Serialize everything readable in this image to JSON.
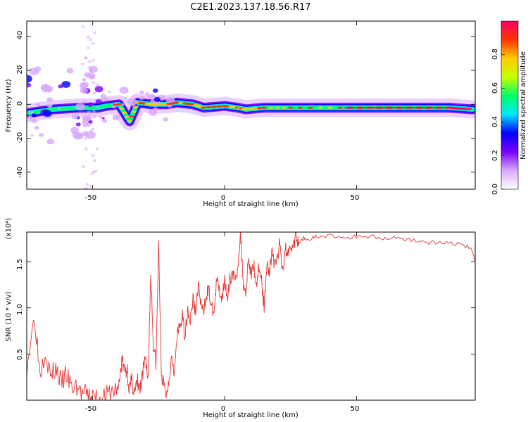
{
  "title": "C2E1.2023.137.18.56.R17",
  "chart_data": [
    {
      "type": "heatmap",
      "xlabel": "Height of straight line (km)",
      "ylabel": "Frequency (Hz)",
      "xlim": [
        -75,
        95
      ],
      "ylim": [
        -50,
        49
      ],
      "x_ticks": [
        "-50",
        "0",
        "50"
      ],
      "y_ticks": [
        "-40",
        "-20",
        "0",
        "20",
        "40"
      ],
      "colorbar": {
        "label": "Normalized spectral amplitude",
        "range": [
          0,
          1
        ],
        "ticks": [
          "0.0",
          "0.2",
          "0.4",
          "0.6",
          "0.8"
        ],
        "colors": [
          "#ffffff",
          "#d9a8ff",
          "#7a00ff",
          "#0000ff",
          "#00e6ff",
          "#00ff66",
          "#c8ff00",
          "#ffcc00",
          "#ff3300",
          "#ff0066"
        ]
      },
      "ridge": [
        {
          "x": -74,
          "f": -5
        },
        {
          "x": -65,
          "f": -3
        },
        {
          "x": -55,
          "f": -2
        },
        {
          "x": -48,
          "f": -2
        },
        {
          "x": -45,
          "f": -1
        },
        {
          "x": -40,
          "f": 0
        },
        {
          "x": -36,
          "f": -10
        },
        {
          "x": -33,
          "f": 1
        },
        {
          "x": -28,
          "f": 0
        },
        {
          "x": -22,
          "f": 0
        },
        {
          "x": -18,
          "f": 1
        },
        {
          "x": -12,
          "f": 0
        },
        {
          "x": -8,
          "f": -2
        },
        {
          "x": 0,
          "f": -1
        },
        {
          "x": 5,
          "f": -2
        },
        {
          "x": 8,
          "f": -3
        },
        {
          "x": 15,
          "f": -2
        },
        {
          "x": 25,
          "f": -2
        },
        {
          "x": 40,
          "f": -2
        },
        {
          "x": 55,
          "f": -2
        },
        {
          "x": 70,
          "f": -2
        },
        {
          "x": 85,
          "f": -2
        },
        {
          "x": 94,
          "f": -3
        }
      ]
    },
    {
      "type": "line",
      "xlabel": "Height of straight line (km)",
      "ylabel": "SNR (10 * v/v)",
      "y_multiplier": "(x10⁴)",
      "xlim": [
        -75,
        95
      ],
      "ylim": [
        0,
        1.82
      ],
      "x_ticks": [
        "-50",
        "0",
        "50"
      ],
      "y_ticks": [
        "0.5",
        "1.0",
        "1.5"
      ],
      "color": "#e53232",
      "series": [
        {
          "x": [
            -75,
            -72,
            -70,
            -68,
            -66,
            -64,
            -62,
            -60,
            -58,
            -56,
            -54,
            -52,
            -50,
            -48,
            -46,
            -44,
            -42,
            -40,
            -39,
            -38,
            -37,
            -36,
            -35,
            -34,
            -33,
            -32,
            -31,
            -30,
            -29,
            -28,
            -27,
            -26,
            -25,
            -24,
            -23,
            -22,
            -21,
            -20,
            -19,
            -18,
            -17,
            -16,
            -15,
            -14,
            -13,
            -12,
            -11,
            -10,
            -9,
            -8,
            -7,
            -6,
            -5,
            -4,
            -3,
            -2,
            -1,
            0,
            1,
            2,
            3,
            4,
            5,
            6,
            7,
            8,
            9,
            10,
            11,
            12,
            13,
            14,
            15,
            16,
            17,
            18,
            19,
            20,
            21,
            22,
            23,
            24,
            25,
            26,
            27,
            28,
            30,
            32,
            35,
            40,
            45,
            50,
            55,
            60,
            65,
            70,
            75,
            80,
            85,
            90,
            94,
            95
          ],
          "y": [
            0.38,
            0.92,
            0.3,
            0.55,
            0.25,
            0.35,
            0.18,
            0.28,
            0.12,
            0.15,
            0.07,
            0.05,
            0.03,
            0.04,
            0.03,
            0.05,
            0.1,
            0.14,
            0.45,
            0.3,
            0.35,
            0.12,
            0.2,
            0.08,
            0.18,
            0.1,
            0.25,
            0.5,
            0.2,
            1.4,
            0.6,
            0.4,
            1.68,
            0.3,
            0.15,
            0.05,
            0.25,
            0.5,
            0.3,
            0.7,
            0.8,
            0.9,
            0.7,
            1.0,
            0.85,
            1.1,
            0.95,
            1.25,
            1.05,
            0.92,
            1.15,
            1.2,
            1.0,
            0.95,
            1.3,
            1.2,
            1.1,
            1.35,
            1.05,
            1.3,
            1.4,
            1.25,
            1.45,
            1.82,
            1.3,
            1.15,
            1.55,
            1.35,
            1.48,
            1.25,
            1.45,
            1.3,
            1.0,
            1.5,
            1.4,
            1.6,
            1.45,
            1.55,
            1.7,
            1.4,
            1.65,
            1.58,
            1.72,
            1.62,
            1.8,
            1.68,
            1.76,
            1.74,
            1.77,
            1.78,
            1.76,
            1.77,
            1.78,
            1.75,
            1.76,
            1.74,
            1.72,
            1.7,
            1.7,
            1.69,
            1.62,
            1.5
          ]
        }
      ]
    }
  ]
}
